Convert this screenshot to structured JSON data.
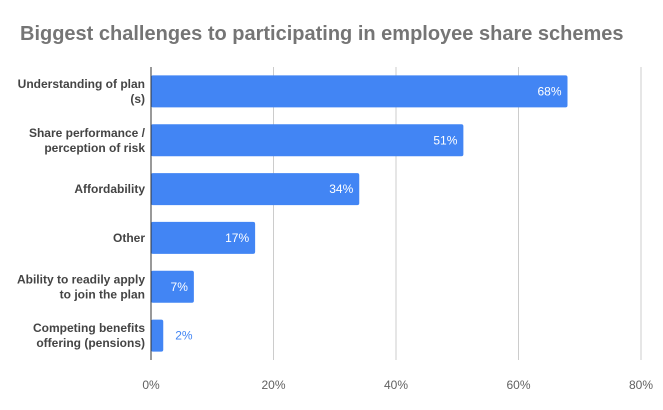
{
  "chart_data": {
    "type": "bar",
    "orientation": "horizontal",
    "title": "Biggest challenges to participating in employee share schemes",
    "categories": [
      [
        "Understanding of plan",
        "(s)"
      ],
      [
        "Share performance /",
        "perception of risk"
      ],
      [
        "Affordability"
      ],
      [
        "Other"
      ],
      [
        "Ability to readily apply",
        "to join the plan"
      ],
      [
        "Competing benefits",
        "offering (pensions)"
      ]
    ],
    "values": [
      68,
      51,
      34,
      17,
      7,
      2
    ],
    "data_labels": [
      "68%",
      "51%",
      "34%",
      "17%",
      "7%",
      "2%"
    ],
    "xlim": [
      0,
      80
    ],
    "x_ticks": [
      0,
      20,
      40,
      60,
      80
    ],
    "x_tick_labels": [
      "0%",
      "20%",
      "40%",
      "60%",
      "80%"
    ],
    "grid": true,
    "legend": "none",
    "bar_color": "#4285f4",
    "inside_label_color": "#ffffff",
    "outside_label_color": "#4285f4"
  }
}
